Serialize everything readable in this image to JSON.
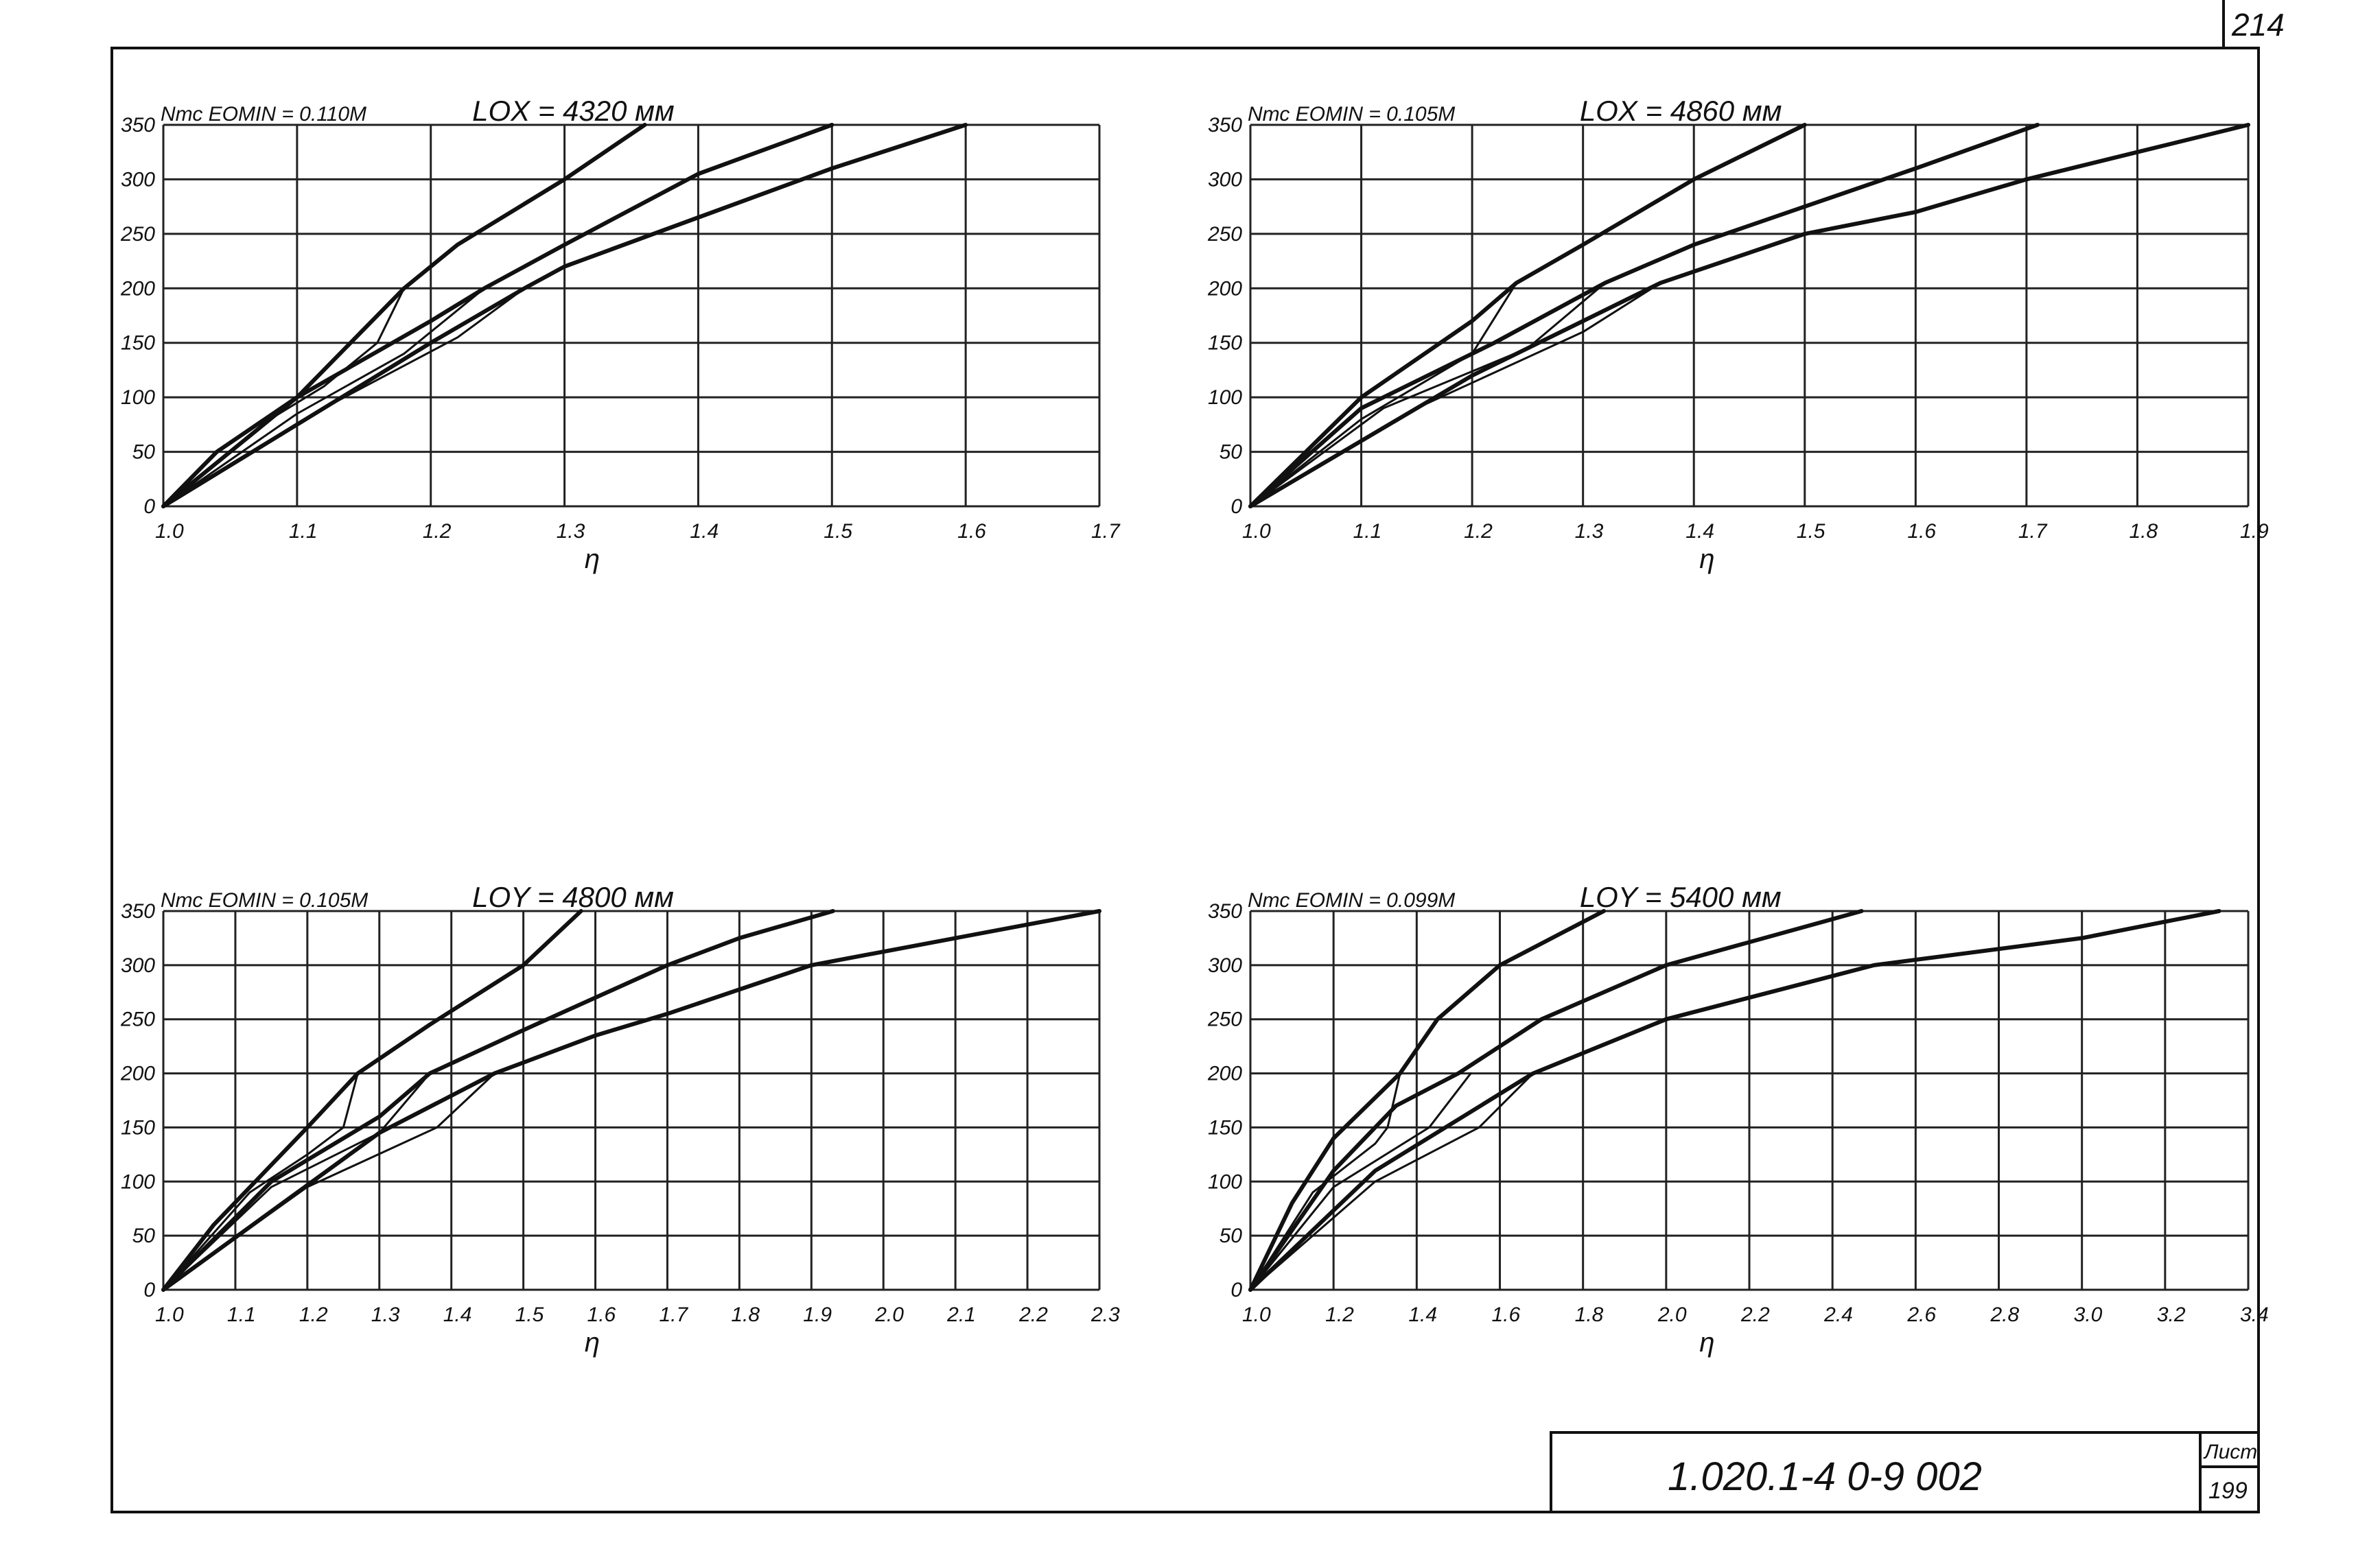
{
  "sheet": {
    "page_number": "214",
    "document_code": "1.020.1-4  0-9  002",
    "sheet_label": "Лист",
    "sheet_number": "199"
  },
  "chart_data": [
    {
      "type": "line",
      "header_left": "Nтс  EOMIN = 0.110M",
      "header_right": "LOX = 4320 мм",
      "xlabel": "η",
      "ylabel": "",
      "xlim": [
        1.0,
        1.7
      ],
      "ylim": [
        0,
        350
      ],
      "x_ticks": [
        "1.0",
        "1.1",
        "1.2",
        "1.3",
        "1.4",
        "1.5",
        "1.6",
        "1.7"
      ],
      "y_ticks": [
        "0",
        "50",
        "100",
        "150",
        "200",
        "250",
        "300",
        "350"
      ],
      "series": [
        {
          "weight": "bold",
          "points": [
            [
              1.0,
              0
            ],
            [
              1.04,
              50
            ],
            [
              1.1,
              100
            ],
            [
              1.18,
              200
            ],
            [
              1.22,
              240
            ],
            [
              1.3,
              300
            ],
            [
              1.36,
              350
            ]
          ]
        },
        {
          "weight": "bold",
          "points": [
            [
              1.0,
              0
            ],
            [
              1.1,
              100
            ],
            [
              1.2,
              170
            ],
            [
              1.24,
              200
            ],
            [
              1.3,
              240
            ],
            [
              1.4,
              305
            ],
            [
              1.5,
              350
            ]
          ]
        },
        {
          "weight": "bold",
          "points": [
            [
              1.0,
              0
            ],
            [
              1.2,
              150
            ],
            [
              1.27,
              200
            ],
            [
              1.3,
              220
            ],
            [
              1.4,
              265
            ],
            [
              1.5,
              310
            ],
            [
              1.6,
              350
            ]
          ]
        },
        {
          "weight": "thin",
          "points": [
            [
              1.0,
              0
            ],
            [
              1.08,
              80
            ],
            [
              1.12,
              110
            ],
            [
              1.16,
              150
            ],
            [
              1.18,
              200
            ]
          ]
        },
        {
          "weight": "thin",
          "points": [
            [
              1.0,
              0
            ],
            [
              1.1,
              85
            ],
            [
              1.18,
              140
            ],
            [
              1.24,
              200
            ]
          ]
        },
        {
          "weight": "thin",
          "points": [
            [
              1.0,
              0
            ],
            [
              1.12,
              90
            ],
            [
              1.22,
              155
            ],
            [
              1.27,
              200
            ]
          ]
        }
      ]
    },
    {
      "type": "line",
      "header_left": "Nтс  EOMIN = 0.105M",
      "header_right": "LOX = 4860 мм",
      "xlabel": "η",
      "ylabel": "",
      "xlim": [
        1.0,
        1.9
      ],
      "ylim": [
        0,
        350
      ],
      "x_ticks": [
        "1.0",
        "1.1",
        "1.2",
        "1.3",
        "1.4",
        "1.5",
        "1.6",
        "1.7",
        "1.8",
        "1.9"
      ],
      "y_ticks": [
        "0",
        "50",
        "100",
        "150",
        "200",
        "250",
        "300",
        "350"
      ],
      "series": [
        {
          "weight": "bold",
          "points": [
            [
              1.0,
              0
            ],
            [
              1.05,
              50
            ],
            [
              1.1,
              100
            ],
            [
              1.2,
              170
            ],
            [
              1.24,
              205
            ],
            [
              1.3,
              240
            ],
            [
              1.4,
              300
            ],
            [
              1.5,
              350
            ]
          ]
        },
        {
          "weight": "bold",
          "points": [
            [
              1.0,
              0
            ],
            [
              1.1,
              90
            ],
            [
              1.22,
              150
            ],
            [
              1.32,
              205
            ],
            [
              1.4,
              240
            ],
            [
              1.5,
              275
            ],
            [
              1.6,
              310
            ],
            [
              1.71,
              350
            ]
          ]
        },
        {
          "weight": "bold",
          "points": [
            [
              1.0,
              0
            ],
            [
              1.2,
              120
            ],
            [
              1.37,
              205
            ],
            [
              1.5,
              250
            ],
            [
              1.6,
              270
            ],
            [
              1.7,
              300
            ],
            [
              1.8,
              325
            ],
            [
              1.9,
              350
            ]
          ]
        },
        {
          "weight": "thin",
          "points": [
            [
              1.0,
              0
            ],
            [
              1.1,
              80
            ],
            [
              1.2,
              140
            ],
            [
              1.24,
              205
            ]
          ]
        },
        {
          "weight": "thin",
          "points": [
            [
              1.0,
              0
            ],
            [
              1.12,
              90
            ],
            [
              1.25,
              145
            ],
            [
              1.32,
              205
            ]
          ]
        },
        {
          "weight": "thin",
          "points": [
            [
              1.0,
              0
            ],
            [
              1.15,
              90
            ],
            [
              1.3,
              160
            ],
            [
              1.37,
              205
            ]
          ]
        }
      ]
    },
    {
      "type": "line",
      "header_left": "Nтс  EOMIN = 0.105M",
      "header_right": "LOY = 4800 мм",
      "xlabel": "η",
      "ylabel": "",
      "xlim": [
        1.0,
        2.3
      ],
      "ylim": [
        0,
        350
      ],
      "x_ticks": [
        "1.0",
        "1.1",
        "1.2",
        "1.3",
        "1.4",
        "1.5",
        "1.6",
        "1.7",
        "1.8",
        "1.9",
        "2.0",
        "2.1",
        "2.2",
        "2.3"
      ],
      "y_ticks": [
        "0",
        "50",
        "100",
        "150",
        "200",
        "250",
        "300",
        "350"
      ],
      "series": [
        {
          "weight": "bold",
          "points": [
            [
              1.0,
              0
            ],
            [
              1.07,
              60
            ],
            [
              1.2,
              150
            ],
            [
              1.27,
              200
            ],
            [
              1.37,
              245
            ],
            [
              1.5,
              300
            ],
            [
              1.58,
              350
            ]
          ]
        },
        {
          "weight": "bold",
          "points": [
            [
              1.0,
              0
            ],
            [
              1.15,
              100
            ],
            [
              1.3,
              160
            ],
            [
              1.37,
              200
            ],
            [
              1.5,
              240
            ],
            [
              1.7,
              300
            ],
            [
              1.8,
              325
            ],
            [
              1.93,
              350
            ]
          ]
        },
        {
          "weight": "bold",
          "points": [
            [
              1.0,
              0
            ],
            [
              1.3,
              145
            ],
            [
              1.46,
              200
            ],
            [
              1.6,
              235
            ],
            [
              1.7,
              255
            ],
            [
              1.9,
              300
            ],
            [
              2.1,
              325
            ],
            [
              2.3,
              350
            ]
          ]
        },
        {
          "weight": "thin",
          "points": [
            [
              1.0,
              0
            ],
            [
              1.12,
              90
            ],
            [
              1.2,
              125
            ],
            [
              1.25,
              150
            ],
            [
              1.27,
              200
            ]
          ]
        },
        {
          "weight": "thin",
          "points": [
            [
              1.0,
              0
            ],
            [
              1.15,
              95
            ],
            [
              1.3,
              145
            ],
            [
              1.37,
              200
            ]
          ]
        },
        {
          "weight": "thin",
          "points": [
            [
              1.0,
              0
            ],
            [
              1.2,
              95
            ],
            [
              1.38,
              150
            ],
            [
              1.46,
              200
            ]
          ]
        }
      ]
    },
    {
      "type": "line",
      "header_left": "Nтс  EOMIN = 0.099M",
      "header_right": "LOY = 5400 мм",
      "xlabel": "η",
      "ylabel": "",
      "xlim": [
        1.0,
        3.4
      ],
      "ylim": [
        0,
        350
      ],
      "x_ticks": [
        "1.0",
        "1.2",
        "1.4",
        "1.6",
        "1.8",
        "2.0",
        "2.2",
        "2.4",
        "2.6",
        "2.8",
        "3.0",
        "3.2",
        "3.4"
      ],
      "y_ticks": [
        "0",
        "50",
        "100",
        "150",
        "200",
        "250",
        "300",
        "350"
      ],
      "series": [
        {
          "weight": "bold",
          "points": [
            [
              1.0,
              0
            ],
            [
              1.1,
              80
            ],
            [
              1.2,
              140
            ],
            [
              1.36,
              200
            ],
            [
              1.45,
              250
            ],
            [
              1.6,
              300
            ],
            [
              1.85,
              350
            ]
          ]
        },
        {
          "weight": "bold",
          "points": [
            [
              1.0,
              0
            ],
            [
              1.2,
              110
            ],
            [
              1.35,
              170
            ],
            [
              1.5,
              200
            ],
            [
              1.7,
              250
            ],
            [
              2.0,
              300
            ],
            [
              2.47,
              350
            ]
          ]
        },
        {
          "weight": "bold",
          "points": [
            [
              1.0,
              0
            ],
            [
              1.3,
              110
            ],
            [
              1.68,
              200
            ],
            [
              2.0,
              250
            ],
            [
              2.5,
              300
            ],
            [
              3.0,
              325
            ],
            [
              3.33,
              350
            ]
          ]
        },
        {
          "weight": "thin",
          "points": [
            [
              1.0,
              0
            ],
            [
              1.15,
              90
            ],
            [
              1.3,
              135
            ],
            [
              1.33,
              150
            ],
            [
              1.36,
              200
            ]
          ]
        },
        {
          "weight": "thin",
          "points": [
            [
              1.0,
              0
            ],
            [
              1.2,
              95
            ],
            [
              1.43,
              150
            ],
            [
              1.53,
              200
            ]
          ]
        },
        {
          "weight": "thin",
          "points": [
            [
              1.0,
              0
            ],
            [
              1.3,
              100
            ],
            [
              1.55,
              150
            ],
            [
              1.68,
              200
            ]
          ]
        }
      ]
    }
  ]
}
